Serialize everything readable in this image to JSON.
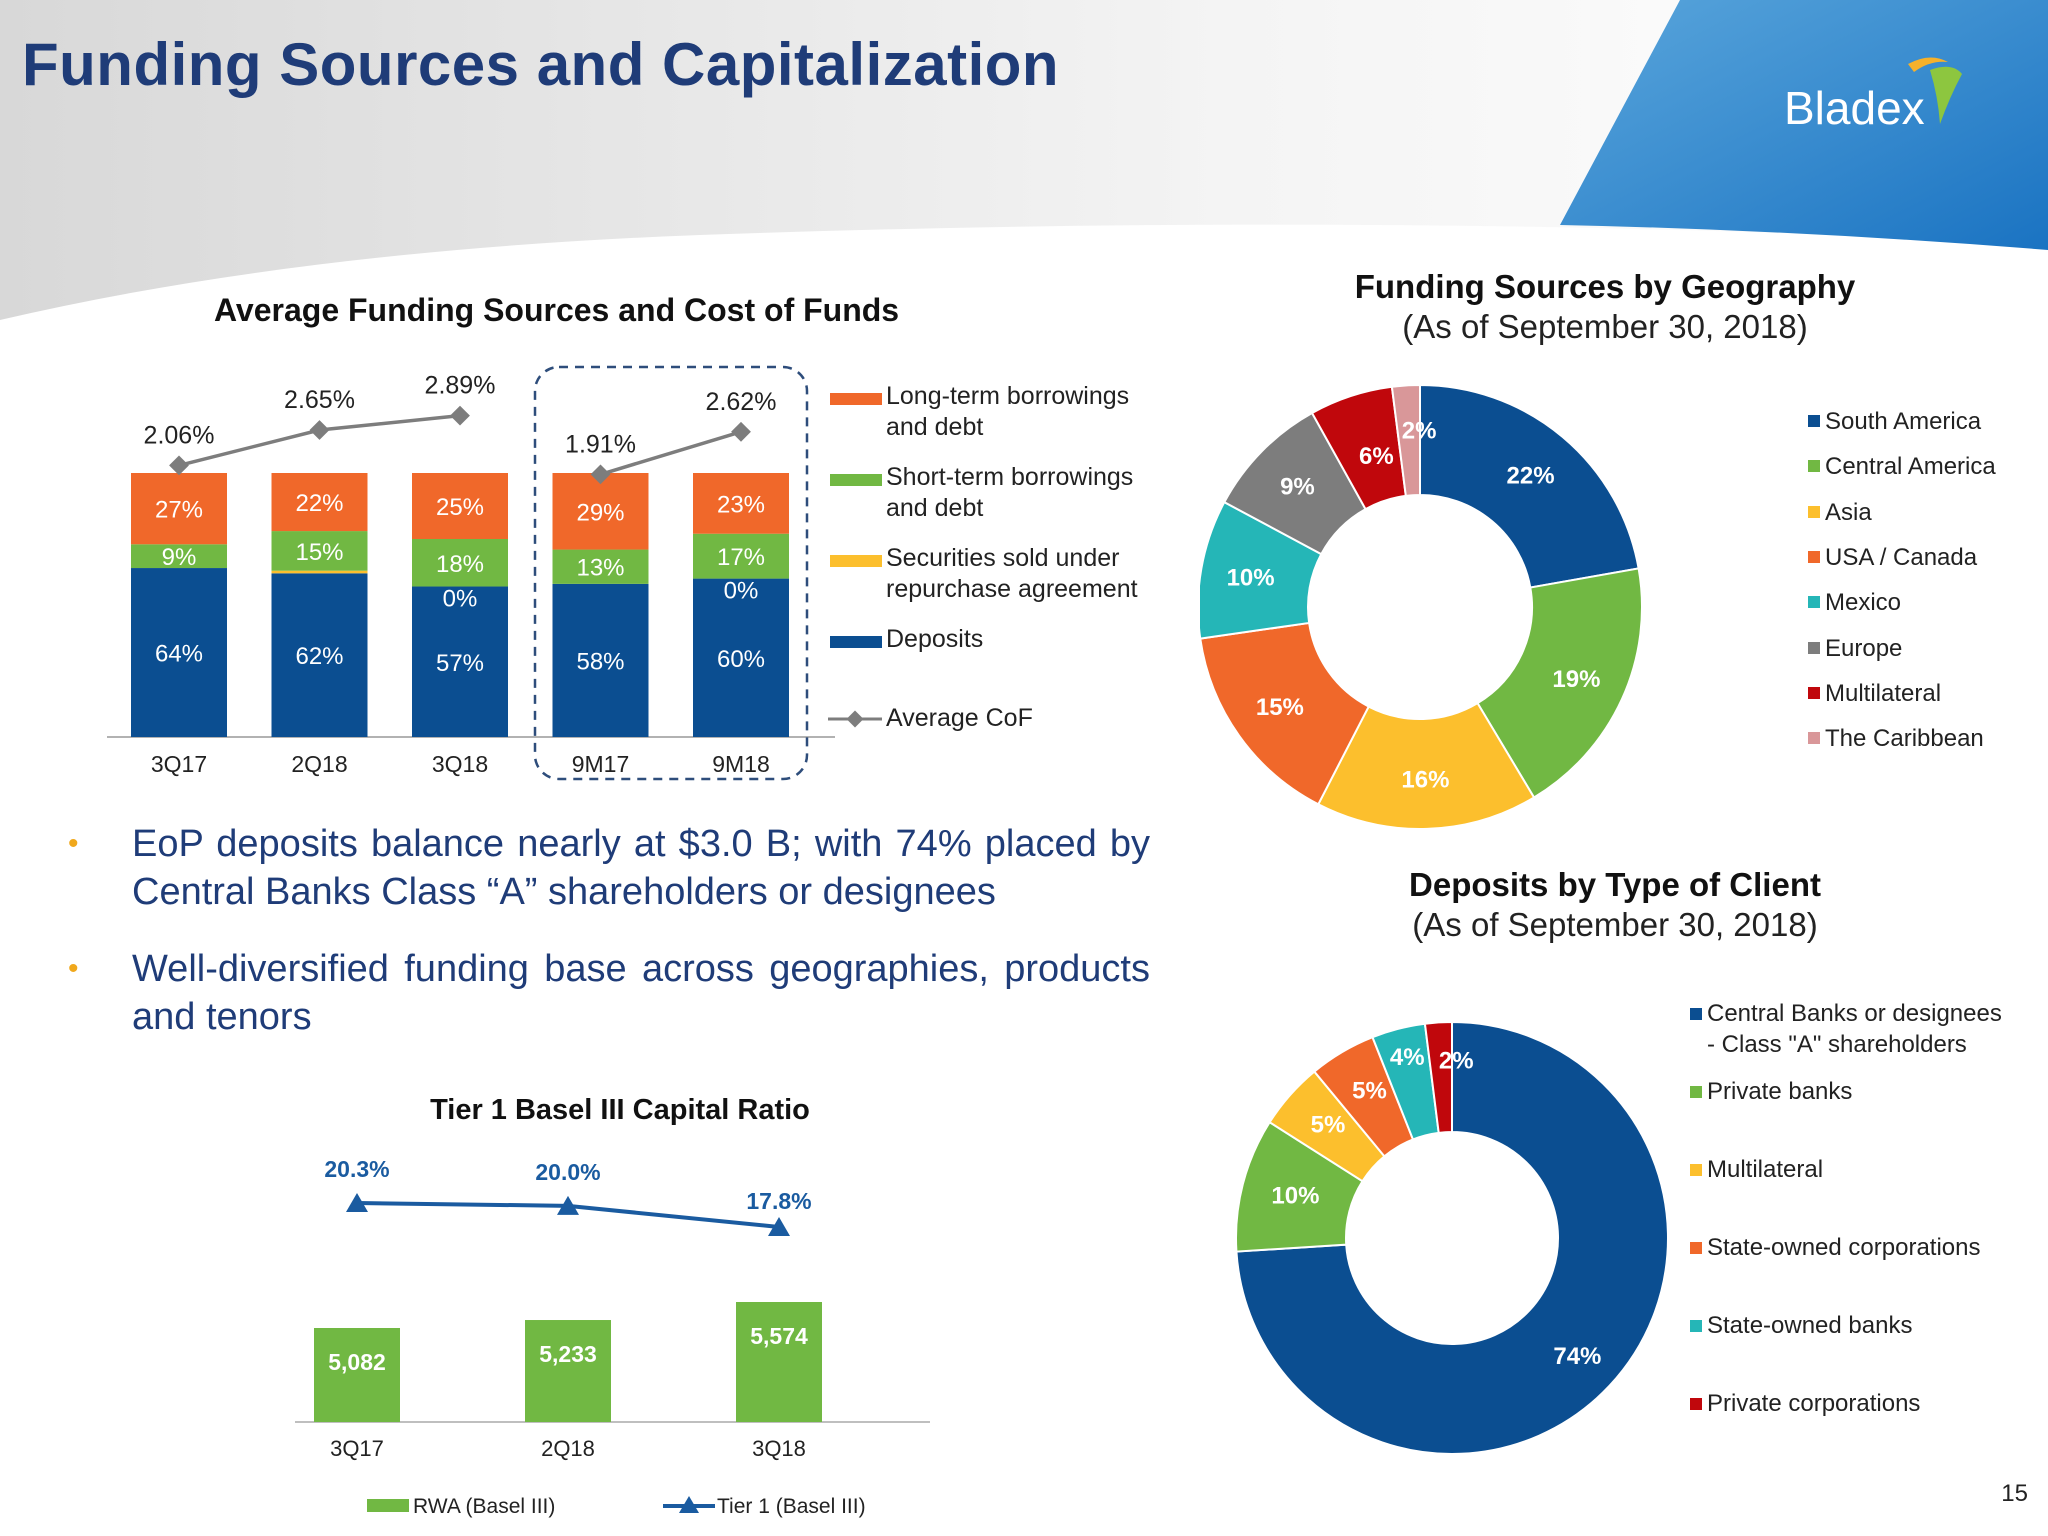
{
  "title": "Funding Sources and Capitalization",
  "logo_text": "Bladex",
  "page_number": "15",
  "colors": {
    "navy": "#0b4e91",
    "green": "#71b843",
    "orange": "#f0682a",
    "yellow": "#fcbf2d",
    "teal": "#25b6b7",
    "gray": "#7d7d7d",
    "red": "#c0070c",
    "pink": "#d99799",
    "title_blue": "#1f3c78",
    "tier_line": "#1a5ba0"
  },
  "bullets": [
    "EoP deposits balance nearly at $3.0 B; with 74% placed by Central Banks Class “A” shareholders or designees",
    "Well-diversified funding base across geographies, products and tenors"
  ],
  "chart_data": [
    {
      "id": "funding_sources",
      "type": "bar",
      "stacked": true,
      "title": "Average Funding Sources and Cost of Funds",
      "categories": [
        "3Q17",
        "2Q18",
        "3Q18",
        "9M17",
        "9M18"
      ],
      "series": [
        {
          "name": "Deposits",
          "values": [
            64,
            62,
            57,
            58,
            60
          ],
          "labels": [
            "64%",
            "62%",
            "57%",
            "58%",
            "60%"
          ],
          "color": "#0b4e91"
        },
        {
          "name": "Securities sold under repurchase agreement",
          "values": [
            0,
            1,
            0,
            0,
            0
          ],
          "labels": [
            "",
            "",
            "0%",
            "",
            "0%"
          ],
          "color": "#fcbf2d"
        },
        {
          "name": "Short-term borrowings and debt",
          "values": [
            9,
            15,
            18,
            13,
            17
          ],
          "labels": [
            "9%",
            "15%",
            "18%",
            "13%",
            "17%"
          ],
          "color": "#71b843"
        },
        {
          "name": "Long-term borrowings and debt",
          "values": [
            27,
            22,
            25,
            29,
            23
          ],
          "labels": [
            "27%",
            "22%",
            "25%",
            "29%",
            "23%"
          ],
          "color": "#f0682a"
        }
      ],
      "line": {
        "name": "Average CoF",
        "values": [
          2.06,
          2.65,
          2.89,
          1.91,
          2.62
        ],
        "labels": [
          "2.06%",
          "2.65%",
          "2.89%",
          "1.91%",
          "2.62%"
        ],
        "color": "#7d7d7d"
      },
      "legend": [
        {
          "label": "Long-term borrowings\nand debt",
          "color": "#f0682a",
          "kind": "box"
        },
        {
          "label": "Short-term borrowings\nand debt",
          "color": "#71b843",
          "kind": "box"
        },
        {
          "label": "Securities sold under\nrepurchase agreement",
          "color": "#fcbf2d",
          "kind": "box"
        },
        {
          "label": "Deposits",
          "color": "#0b4e91",
          "kind": "box"
        },
        {
          "label": "Average CoF",
          "color": "#7d7d7d",
          "kind": "line"
        }
      ],
      "ylim": [
        0,
        100
      ],
      "grid": false,
      "legend_position": "right"
    },
    {
      "id": "geography",
      "type": "pie",
      "donut": true,
      "title": "Funding Sources by Geography",
      "subtitle": "(As of September 30, 2018)",
      "slices": [
        {
          "label": "South America",
          "value": 22,
          "color": "#0b4e91"
        },
        {
          "label": "Central America",
          "value": 19,
          "color": "#71b843"
        },
        {
          "label": "Asia",
          "value": 16,
          "color": "#fcbf2d"
        },
        {
          "label": "USA / Canada",
          "value": 15,
          "color": "#f0682a"
        },
        {
          "label": "Mexico",
          "value": 10,
          "color": "#25b6b7"
        },
        {
          "label": "Europe",
          "value": 9,
          "color": "#7d7d7d"
        },
        {
          "label": "Multilateral",
          "value": 6,
          "color": "#c0070c"
        },
        {
          "label": "The Caribbean",
          "value": 2,
          "color": "#d99799"
        }
      ],
      "legend_position": "right"
    },
    {
      "id": "deposits_client",
      "type": "pie",
      "donut": true,
      "title": "Deposits by Type of Client",
      "subtitle": "(As of September 30, 2018)",
      "slices": [
        {
          "label": "Central Banks or designees\n- Class \"A\" shareholders",
          "value": 74,
          "color": "#0b4e91"
        },
        {
          "label": "Private banks",
          "value": 10,
          "color": "#71b843"
        },
        {
          "label": "Multilateral",
          "value": 5,
          "color": "#fcbf2d"
        },
        {
          "label": "State-owned corporations",
          "value": 5,
          "color": "#f0682a"
        },
        {
          "label": "State-owned banks",
          "value": 4,
          "color": "#25b6b7"
        },
        {
          "label": "Private corporations",
          "value": 2,
          "color": "#c0070c"
        }
      ],
      "legend_position": "right"
    },
    {
      "id": "tier1",
      "type": "bar",
      "title": "Tier 1 Basel III Capital Ratio",
      "categories": [
        "3Q17",
        "2Q18",
        "3Q18"
      ],
      "series": [
        {
          "name": "RWA (Basel III)",
          "values": [
            5082,
            5233,
            5574
          ],
          "labels": [
            "5,082",
            "5,233",
            "5,574"
          ],
          "color": "#71b843"
        }
      ],
      "line": {
        "name": "Tier 1 (Basel III)",
        "values": [
          20.3,
          20.0,
          17.8
        ],
        "labels": [
          "20.3%",
          "20.0%",
          "17.8%"
        ],
        "color": "#1a5ba0"
      },
      "legend_position": "bottom"
    }
  ]
}
